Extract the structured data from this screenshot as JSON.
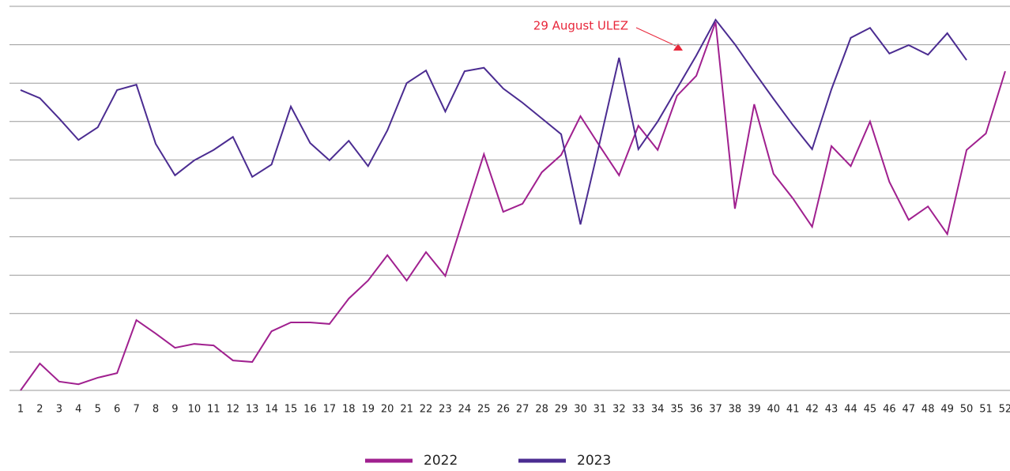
{
  "chart_data": {
    "type": "line",
    "annotation": "29 August ULEZ",
    "categories": [
      "1",
      "2",
      "3",
      "4",
      "5",
      "6",
      "7",
      "8",
      "9",
      "10",
      "11",
      "12",
      "13",
      "14",
      "15",
      "16",
      "17",
      "18",
      "19",
      "20",
      "21",
      "22",
      "23",
      "24",
      "25",
      "26",
      "27",
      "28",
      "29",
      "30",
      "31",
      "32",
      "33",
      "34",
      "35",
      "36",
      "37",
      "38",
      "39",
      "40",
      "41",
      "42",
      "43",
      "44",
      "45",
      "46",
      "47",
      "48",
      "49",
      "50",
      "51",
      "52"
    ],
    "series": [
      {
        "name": "2022",
        "color": "#a0208f",
        "values": [
          0,
          7.0,
          2.3,
          1.6,
          3.3,
          4.5,
          18.3,
          14.8,
          11.1,
          12.1,
          11.7,
          7.8,
          7.4,
          15.4,
          17.7,
          17.7,
          17.3,
          23.9,
          28.6,
          35.2,
          28.6,
          36.0,
          29.8,
          45.7,
          61.5,
          46.5,
          48.6,
          56.8,
          61.3,
          71.4,
          63.6,
          56.0,
          68.9,
          62.6,
          76.7,
          81.9,
          95.9,
          47.3,
          74.5,
          56.4,
          50.0,
          42.6,
          63.6,
          58.4,
          70.0,
          54.3,
          44.4,
          47.9,
          40.7,
          62.6,
          66.9,
          83.1
        ]
      },
      {
        "name": "2023",
        "color": "#4b2c91",
        "values": [
          78.2,
          76.1,
          70.8,
          65.2,
          68.5,
          78.2,
          79.6,
          64.2,
          56.0,
          59.9,
          62.6,
          66.0,
          55.6,
          58.8,
          73.9,
          64.4,
          59.9,
          65.0,
          58.4,
          67.7,
          80.0,
          83.3,
          72.6,
          83.1,
          84.0,
          78.6,
          74.9,
          70.8,
          66.7,
          43.2,
          64.6,
          86.6,
          62.8,
          70.0,
          78.6,
          87.2,
          96.5,
          90.1,
          82.9,
          75.9,
          69.1,
          62.8,
          78.4,
          91.8,
          94.4,
          87.7,
          89.9,
          87.4,
          93.0,
          86.0,
          null,
          null
        ]
      }
    ],
    "ylim": [
      0,
      100
    ],
    "yticks": [
      0,
      10,
      20,
      30,
      40,
      50,
      60,
      70,
      80,
      90,
      100
    ],
    "grid": true
  }
}
